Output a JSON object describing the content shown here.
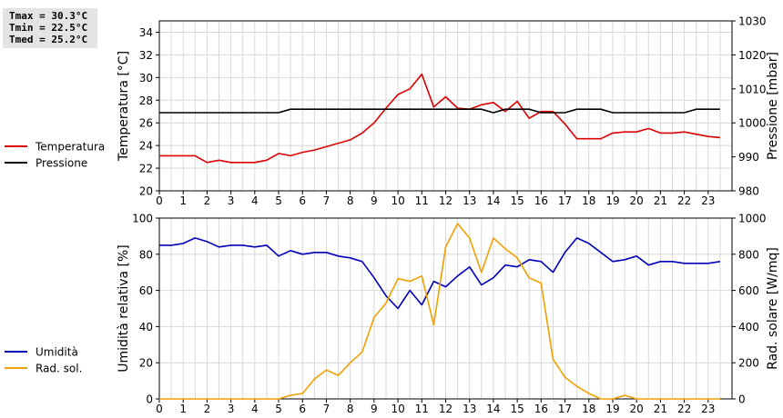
{
  "stats": {
    "tmax": "Tmax = 30.3°C",
    "tmin": "Tmin = 22.5°C",
    "tmed": "Tmed = 25.2°C"
  },
  "chart_data": [
    {
      "type": "line",
      "x_ticks": [
        "0",
        "1",
        "2",
        "3",
        "4",
        "5",
        "6",
        "7",
        "8",
        "9",
        "10",
        "11",
        "12",
        "13",
        "14",
        "15",
        "16",
        "17",
        "18",
        "19",
        "20",
        "21",
        "22",
        "23"
      ],
      "xlim": [
        0,
        24
      ],
      "ylabel": "Temperatura [°C]",
      "ylim": [
        20,
        35
      ],
      "y_ticks": [
        "20",
        "22",
        "24",
        "26",
        "28",
        "30",
        "32",
        "34"
      ],
      "y2label": "Pressione [mbar]",
      "y2lim": [
        980,
        1030
      ],
      "y2_ticks": [
        "980",
        "990",
        "1000",
        "1010",
        "1020",
        "1030"
      ],
      "grid": true,
      "legend_position": "left",
      "series": [
        {
          "name": "Temperatura",
          "color": "#dd0000",
          "axis": "left",
          "x": [
            0,
            0.5,
            1,
            1.5,
            2,
            2.5,
            3,
            3.5,
            4,
            4.5,
            5,
            5.5,
            6,
            6.5,
            7,
            7.5,
            8,
            8.5,
            9,
            9.5,
            10,
            10.5,
            11,
            11.5,
            12,
            12.5,
            13,
            13.5,
            14,
            14.5,
            15,
            15.5,
            16,
            16.5,
            17,
            17.5,
            18,
            18.5,
            19,
            19.5,
            20,
            20.5,
            21,
            21.5,
            22,
            22.5,
            23,
            23.5
          ],
          "values": [
            23.1,
            23.1,
            23.1,
            23.1,
            22.5,
            22.7,
            22.5,
            22.5,
            22.5,
            22.7,
            23.3,
            23.1,
            23.4,
            23.6,
            23.9,
            24.2,
            24.5,
            25.1,
            26.0,
            27.3,
            28.5,
            29.0,
            30.3,
            27.4,
            28.3,
            27.3,
            27.2,
            27.6,
            27.8,
            27.0,
            27.9,
            26.4,
            27.0,
            27.0,
            25.9,
            24.6,
            24.6,
            24.6,
            25.1,
            25.2,
            25.2,
            25.5,
            25.1,
            25.1,
            25.2,
            25.0,
            24.8,
            24.7
          ]
        },
        {
          "name": "Pressione",
          "color": "#000000",
          "axis": "right",
          "x": [
            0,
            0.5,
            1,
            1.5,
            2,
            2.5,
            3,
            3.5,
            4,
            4.5,
            5,
            5.5,
            6,
            6.5,
            7,
            7.5,
            8,
            8.5,
            9,
            9.5,
            10,
            10.5,
            11,
            11.5,
            12,
            12.5,
            13,
            13.5,
            14,
            14.5,
            15,
            15.5,
            16,
            16.5,
            17,
            17.5,
            18,
            18.5,
            19,
            19.5,
            20,
            20.5,
            21,
            21.5,
            22,
            22.5,
            23,
            23.5
          ],
          "values": [
            1003,
            1003,
            1003,
            1003,
            1003,
            1003,
            1003,
            1003,
            1003,
            1003,
            1003,
            1004,
            1004,
            1004,
            1004,
            1004,
            1004,
            1004,
            1004,
            1004,
            1004,
            1004,
            1004,
            1004,
            1004,
            1004,
            1004,
            1004,
            1003,
            1004,
            1004,
            1004,
            1003,
            1003,
            1003,
            1004,
            1004,
            1004,
            1003,
            1003,
            1003,
            1003,
            1003,
            1003,
            1003,
            1004,
            1004,
            1004
          ]
        }
      ]
    },
    {
      "type": "line",
      "x_ticks": [
        "0",
        "1",
        "2",
        "3",
        "4",
        "5",
        "6",
        "7",
        "8",
        "9",
        "10",
        "11",
        "12",
        "13",
        "14",
        "15",
        "16",
        "17",
        "18",
        "19",
        "20",
        "21",
        "22",
        "23"
      ],
      "xlim": [
        0,
        24
      ],
      "ylabel": "Umidità relativa [%]",
      "ylim": [
        0,
        100
      ],
      "y_ticks": [
        "0",
        "20",
        "40",
        "60",
        "80",
        "100"
      ],
      "y2label": "Rad. solare [W/mq]",
      "y2lim": [
        0,
        1000
      ],
      "y2_ticks": [
        "0",
        "200",
        "400",
        "600",
        "800",
        "1000"
      ],
      "grid": true,
      "legend_position": "left",
      "series": [
        {
          "name": "Umidità",
          "color": "#0000bb",
          "axis": "left",
          "x": [
            0,
            0.5,
            1,
            1.5,
            2,
            2.5,
            3,
            3.5,
            4,
            4.5,
            5,
            5.5,
            6,
            6.5,
            7,
            7.5,
            8,
            8.5,
            9,
            9.5,
            10,
            10.5,
            11,
            11.5,
            12,
            12.5,
            13,
            13.5,
            14,
            14.5,
            15,
            15.5,
            16,
            16.5,
            17,
            17.5,
            18,
            18.5,
            19,
            19.5,
            20,
            20.5,
            21,
            21.5,
            22,
            22.5,
            23,
            23.5
          ],
          "values": [
            85,
            85,
            86,
            89,
            87,
            84,
            85,
            85,
            84,
            85,
            79,
            82,
            80,
            81,
            81,
            79,
            78,
            76,
            67,
            57,
            50,
            60,
            52,
            65,
            62,
            68,
            73,
            63,
            67,
            74,
            73,
            77,
            76,
            70,
            81,
            89,
            86,
            81,
            76,
            77,
            79,
            74,
            76,
            76,
            75,
            75,
            75,
            76
          ]
        },
        {
          "name": "Rad. sol.",
          "color": "#f0a000",
          "axis": "right",
          "x": [
            0,
            0.5,
            1,
            1.5,
            2,
            2.5,
            3,
            3.5,
            4,
            4.5,
            5,
            5.5,
            6,
            6.5,
            7,
            7.5,
            8,
            8.5,
            9,
            9.5,
            10,
            10.5,
            11,
            11.5,
            12,
            12.5,
            13,
            13.5,
            14,
            14.5,
            15,
            15.5,
            16,
            16.5,
            17,
            17.5,
            18,
            18.5,
            19,
            19.5,
            20,
            20.5,
            21,
            21.5,
            22,
            22.5,
            23,
            23.5
          ],
          "values": [
            0,
            0,
            0,
            0,
            0,
            0,
            0,
            0,
            0,
            0,
            0,
            20,
            30,
            110,
            160,
            130,
            200,
            260,
            450,
            530,
            665,
            650,
            680,
            410,
            840,
            970,
            890,
            700,
            890,
            830,
            780,
            670,
            640,
            220,
            120,
            70,
            30,
            0,
            0,
            20,
            0,
            0,
            0,
            0,
            0,
            0,
            0,
            0
          ]
        }
      ]
    }
  ]
}
